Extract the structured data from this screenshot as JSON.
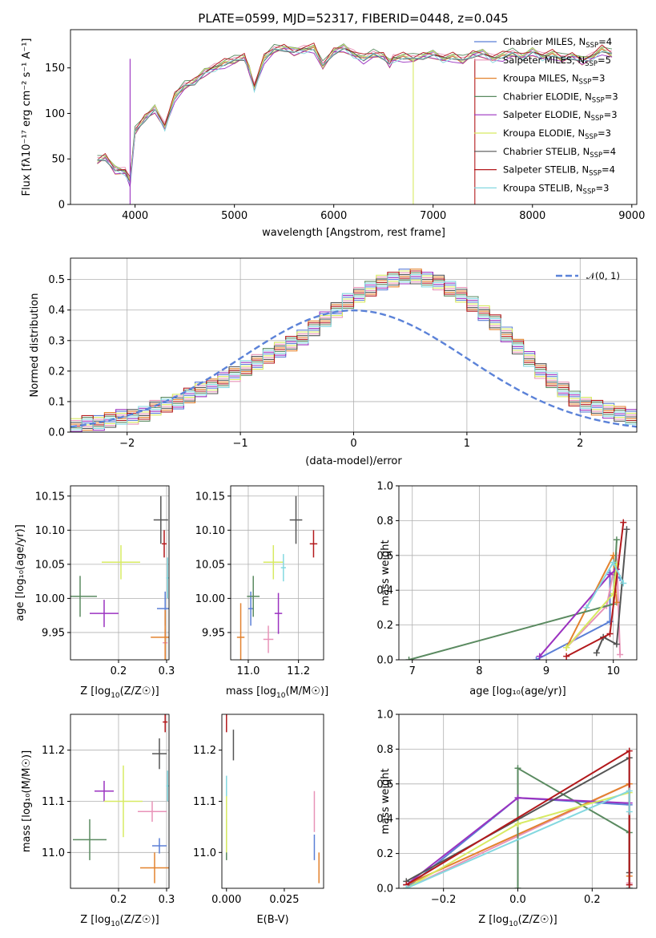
{
  "figure": {
    "title": "PLATE=0599, MJD=52317, FIBERID=0448, z=0.045"
  },
  "chart_data": [
    {
      "id": "spectrum",
      "type": "line",
      "xlabel": "wavelength [Angstrom, rest frame]",
      "ylabel": "Flux [fλ10⁻¹⁷ erg cm⁻² s⁻¹ A⁻¹]",
      "xlim": [
        3350,
        9050
      ],
      "ylim": [
        0,
        192
      ],
      "xticks": [
        4000,
        5000,
        6000,
        7000,
        8000,
        9000
      ],
      "yticks": [
        0,
        50,
        100,
        150
      ],
      "legend_position": "top-right",
      "x": [
        3620,
        3700,
        3800,
        3900,
        3950,
        4000,
        4100,
        4200,
        4300,
        4400,
        4500,
        4600,
        4700,
        4800,
        4900,
        5000,
        5100,
        5150,
        5200,
        5300,
        5400,
        5500,
        5600,
        5700,
        5800,
        5890,
        6000,
        6100,
        6200,
        6300,
        6400,
        6500,
        6563,
        6600,
        6700,
        6800,
        6900,
        7000,
        7100,
        7200,
        7300,
        7400,
        7500,
        7600,
        7700,
        7800,
        7900,
        8000,
        8100,
        8200,
        8300,
        8400,
        8500,
        8600,
        8700,
        8800
      ],
      "y": [
        48,
        52,
        38,
        36,
        25,
        80,
        95,
        105,
        85,
        118,
        130,
        135,
        145,
        150,
        155,
        158,
        162,
        148,
        128,
        160,
        170,
        172,
        168,
        170,
        172,
        152,
        168,
        172,
        165,
        160,
        165,
        163,
        155,
        160,
        162,
        160,
        163,
        165,
        160,
        162,
        158,
        165,
        166,
        160,
        163,
        166,
        162,
        168,
        162,
        165,
        160,
        163,
        158,
        162,
        170,
        165
      ],
      "dropouts": [
        {
          "series": "Salpeter ELODIE",
          "x": 3950
        },
        {
          "series": "Kroupa ELODIE",
          "x": 6800
        },
        {
          "series": "Salpeter STELIB",
          "x": 7420
        }
      ],
      "series": [
        {
          "name": "Chabrier MILES, N_SSP=4",
          "name_main": "Chabrier MILES, N",
          "name_sub": "SSP",
          "name_tail": "=4",
          "color": "#5b7fd6"
        },
        {
          "name": "Salpeter MILES, N_SSP=5",
          "name_main": "Salpeter MILES, N",
          "name_sub": "SSP",
          "name_tail": "=5",
          "color": "#e893b8"
        },
        {
          "name": "Kroupa MILES, N_SSP=3",
          "name_main": "Kroupa MILES, N",
          "name_sub": "SSP",
          "name_tail": "=3",
          "color": "#e3822e"
        },
        {
          "name": "Chabrier ELODIE, N_SSP=3",
          "name_main": "Chabrier ELODIE, N",
          "name_sub": "SSP",
          "name_tail": "=3",
          "color": "#5a8a60"
        },
        {
          "name": "Salpeter ELODIE, N_SSP=3",
          "name_main": "Salpeter ELODIE, N",
          "name_sub": "SSP",
          "name_tail": "=3",
          "color": "#9b32c0"
        },
        {
          "name": "Kroupa ELODIE, N_SSP=3",
          "name_main": "Kroupa ELODIE, N",
          "name_sub": "SSP",
          "name_tail": "=3",
          "color": "#d7ea62"
        },
        {
          "name": "Chabrier STELIB, N_SSP=4",
          "name_main": "Chabrier STELIB, N",
          "name_sub": "SSP",
          "name_tail": "=4",
          "color": "#555555"
        },
        {
          "name": "Salpeter STELIB, N_SSP=4",
          "name_main": "Salpeter STELIB, N",
          "name_sub": "SSP",
          "name_tail": "=4",
          "color": "#b3191c"
        },
        {
          "name": "Kroupa STELIB, N_SSP=3",
          "name_main": "Kroupa STELIB, N",
          "name_sub": "SSP",
          "name_tail": "=3",
          "color": "#84d8e0"
        }
      ]
    },
    {
      "id": "residuals",
      "type": "line",
      "xlabel": "(data-model)/error",
      "ylabel": "Normed distribution",
      "xlim": [
        -2.5,
        2.5
      ],
      "ylim": [
        0,
        0.57
      ],
      "xticks": [
        -2,
        -1,
        0,
        1,
        2
      ],
      "yticks": [
        0.0,
        0.1,
        0.2,
        0.3,
        0.4,
        0.5
      ],
      "grid": true,
      "legend": "𝒩(0, 1)",
      "legend_position": "top-right",
      "bin_width": 0.1,
      "bin_start": -2.5,
      "histogram": [
        0.02,
        0.03,
        0.03,
        0.04,
        0.05,
        0.05,
        0.06,
        0.08,
        0.09,
        0.1,
        0.12,
        0.14,
        0.15,
        0.17,
        0.19,
        0.21,
        0.23,
        0.25,
        0.27,
        0.29,
        0.31,
        0.34,
        0.37,
        0.4,
        0.43,
        0.45,
        0.47,
        0.49,
        0.5,
        0.51,
        0.51,
        0.5,
        0.49,
        0.47,
        0.45,
        0.42,
        0.39,
        0.36,
        0.32,
        0.28,
        0.24,
        0.2,
        0.17,
        0.14,
        0.11,
        0.09,
        0.08,
        0.07,
        0.06,
        0.05,
        0.04,
        0.04,
        0.03,
        0.03,
        0.02
      ],
      "reference_curve": "N(0,1)"
    },
    {
      "id": "age_vs_Z",
      "type": "scatter",
      "xlabel_main": "Z [log",
      "xlabel_sub": "10",
      "xlabel_tail": "(Z/Z☉)]",
      "ylabel": "age  [log₁₀(age/yr)]",
      "xlim": [
        0.1,
        0.305
      ],
      "ylim": [
        9.91,
        10.165
      ],
      "xticks": [
        0.2,
        0.3
      ],
      "yticks": [
        9.95,
        10.0,
        10.05,
        10.1,
        10.15
      ],
      "grid": true,
      "points": [
        {
          "x": 0.297,
          "y": 9.985,
          "xerr": 0.017,
          "yerr": 0.025,
          "color": "#5b7fd6"
        },
        {
          "x": 0.297,
          "y": 9.935,
          "xerr": 0.005,
          "yerr": 0.02,
          "color": "#e893b8"
        },
        {
          "x": 0.297,
          "y": 9.943,
          "xerr": 0.03,
          "yerr": 0.04,
          "color": "#e3822e"
        },
        {
          "x": 0.12,
          "y": 10.003,
          "xerr": 0.035,
          "yerr": 0.03,
          "color": "#5a8a60"
        },
        {
          "x": 0.17,
          "y": 9.978,
          "xerr": 0.03,
          "yerr": 0.02,
          "color": "#9b32c0"
        },
        {
          "x": 0.205,
          "y": 10.053,
          "xerr": 0.04,
          "yerr": 0.025,
          "color": "#d7ea62"
        },
        {
          "x": 0.288,
          "y": 10.115,
          "xerr": 0.015,
          "yerr": 0.035,
          "color": "#555555"
        },
        {
          "x": 0.295,
          "y": 10.08,
          "xerr": 0.005,
          "yerr": 0.02,
          "color": "#b3191c"
        },
        {
          "x": 0.302,
          "y": 10.03,
          "xerr": 0.003,
          "yerr": 0.03,
          "color": "#84d8e0"
        }
      ]
    },
    {
      "id": "age_vs_mass",
      "type": "scatter",
      "xlabel_main": "mass [log",
      "xlabel_sub": "10",
      "xlabel_tail": "(M/M☉)]",
      "xlim": [
        10.93,
        11.3
      ],
      "ylim": [
        9.91,
        10.165
      ],
      "xticks": [
        11.0,
        11.2
      ],
      "yticks": [
        9.95,
        10.0,
        10.05,
        10.1,
        10.15
      ],
      "grid": true,
      "points": [
        {
          "x": 11.01,
          "y": 9.985,
          "xerr": 0.01,
          "yerr": 0.025,
          "color": "#5b7fd6"
        },
        {
          "x": 11.08,
          "y": 9.94,
          "xerr": 0.02,
          "yerr": 0.02,
          "color": "#e893b8"
        },
        {
          "x": 10.97,
          "y": 9.943,
          "xerr": 0.015,
          "yerr": 0.05,
          "color": "#e3822e"
        },
        {
          "x": 11.02,
          "y": 10.003,
          "xerr": 0.025,
          "yerr": 0.03,
          "color": "#5a8a60"
        },
        {
          "x": 11.12,
          "y": 9.978,
          "xerr": 0.015,
          "yerr": 0.03,
          "color": "#9b32c0"
        },
        {
          "x": 11.1,
          "y": 10.053,
          "xerr": 0.04,
          "yerr": 0.025,
          "color": "#d7ea62"
        },
        {
          "x": 11.19,
          "y": 10.115,
          "xerr": 0.025,
          "yerr": 0.035,
          "color": "#555555"
        },
        {
          "x": 11.26,
          "y": 10.08,
          "xerr": 0.015,
          "yerr": 0.02,
          "color": "#b3191c"
        },
        {
          "x": 11.14,
          "y": 10.045,
          "xerr": 0.01,
          "yerr": 0.02,
          "color": "#84d8e0"
        }
      ]
    },
    {
      "id": "weight_vs_age",
      "type": "line",
      "xlabel": "age  [log₁₀(age/yr)]",
      "ylabel": "mass weight",
      "xlim": [
        6.8,
        10.35
      ],
      "ylim": [
        0,
        1.0
      ],
      "xticks": [
        7,
        8,
        9,
        10
      ],
      "yticks": [
        0.0,
        0.2,
        0.4,
        0.6,
        0.8,
        1.0
      ],
      "grid": true,
      "series": [
        {
          "color": "#5b7fd6",
          "x": [
            8.85,
            9.95,
            9.95,
            10.1
          ],
          "y": [
            0.0,
            0.22,
            0.5,
            0.47
          ]
        },
        {
          "color": "#e893b8",
          "x": [
            9.3,
            9.9,
            10.05,
            10.1
          ],
          "y": [
            0.07,
            0.31,
            0.6,
            0.03
          ]
        },
        {
          "color": "#e3822e",
          "x": [
            9.3,
            10.0,
            10.05
          ],
          "y": [
            0.07,
            0.6,
            0.33
          ]
        },
        {
          "color": "#5a8a60",
          "x": [
            6.95,
            10.0,
            10.05
          ],
          "y": [
            0.0,
            0.32,
            0.69
          ]
        },
        {
          "color": "#9b32c0",
          "x": [
            8.9,
            9.95,
            10.05
          ],
          "y": [
            0.02,
            0.49,
            0.52
          ]
        },
        {
          "color": "#d7ea62",
          "x": [
            9.3,
            10.0,
            10.05
          ],
          "y": [
            0.07,
            0.38,
            0.55
          ]
        },
        {
          "color": "#555555",
          "x": [
            9.75,
            9.85,
            10.05,
            10.2
          ],
          "y": [
            0.04,
            0.13,
            0.09,
            0.75
          ]
        },
        {
          "color": "#b3191c",
          "x": [
            9.3,
            9.95,
            10.15
          ],
          "y": [
            0.02,
            0.15,
            0.79
          ]
        },
        {
          "color": "#84d8e0",
          "x": [
            9.6,
            10.0,
            10.15
          ],
          "y": [
            0.3,
            0.56,
            0.44
          ]
        }
      ]
    },
    {
      "id": "mass_vs_Z",
      "type": "scatter",
      "xlabel_main": "Z [log",
      "xlabel_sub": "10",
      "xlabel_tail": "(Z/Z☉)]",
      "ylabel": "mass [log₁₀(M/M☉)]",
      "xlim": [
        0.1,
        0.305
      ],
      "ylim": [
        10.93,
        11.27
      ],
      "xticks": [
        0.2,
        0.3
      ],
      "yticks": [
        11.0,
        11.1,
        11.2
      ],
      "grid": true,
      "points": [
        {
          "x": 0.285,
          "y": 11.013,
          "xerr": 0.015,
          "yerr": 0.015,
          "color": "#5b7fd6"
        },
        {
          "x": 0.27,
          "y": 11.08,
          "xerr": 0.03,
          "yerr": 0.02,
          "color": "#e893b8"
        },
        {
          "x": 0.275,
          "y": 10.97,
          "xerr": 0.03,
          "yerr": 0.03,
          "color": "#e3822e"
        },
        {
          "x": 0.14,
          "y": 11.025,
          "xerr": 0.035,
          "yerr": 0.04,
          "color": "#5a8a60"
        },
        {
          "x": 0.17,
          "y": 11.12,
          "xerr": 0.02,
          "yerr": 0.02,
          "color": "#9b32c0"
        },
        {
          "x": 0.21,
          "y": 11.1,
          "xerr": 0.04,
          "yerr": 0.07,
          "color": "#d7ea62"
        },
        {
          "x": 0.285,
          "y": 11.193,
          "xerr": 0.015,
          "yerr": 0.03,
          "color": "#555555"
        },
        {
          "x": 0.297,
          "y": 11.255,
          "xerr": 0.005,
          "yerr": 0.02,
          "color": "#b3191c"
        },
        {
          "x": 0.302,
          "y": 11.13,
          "xerr": 0.003,
          "yerr": 0.03,
          "color": "#84d8e0"
        }
      ]
    },
    {
      "id": "mass_vs_EBV",
      "type": "scatter",
      "xlabel": "E(B-V)",
      "xlim": [
        -0.002,
        0.042
      ],
      "ylim": [
        10.93,
        11.27
      ],
      "xticks": [
        0.0,
        0.025
      ],
      "ytick_labels": [
        "11.0",
        "11.1",
        "11.2"
      ],
      "yticks": [
        11.0,
        11.1,
        11.2
      ],
      "points": [
        {
          "x": 0.038,
          "y": 11.01,
          "xerr": 0.0,
          "yerr": 0.025,
          "color": "#5b7fd6"
        },
        {
          "x": 0.038,
          "y": 11.08,
          "xerr": 0.0,
          "yerr": 0.04,
          "color": "#e893b8"
        },
        {
          "x": 0.04,
          "y": 10.97,
          "xerr": 0.0,
          "yerr": 0.03,
          "color": "#e3822e"
        },
        {
          "x": 0.0,
          "y": 11.025,
          "xerr": 0.0,
          "yerr": 0.04,
          "color": "#5a8a60"
        },
        {
          "x": 0.0,
          "y": 11.06,
          "xerr": 0.0,
          "yerr": 0.06,
          "color": "#d7ea62"
        },
        {
          "x": 0.003,
          "y": 11.21,
          "xerr": 0.0,
          "yerr": 0.03,
          "color": "#555555"
        },
        {
          "x": 0.0,
          "y": 11.255,
          "xerr": 0.0,
          "yerr": 0.02,
          "color": "#b3191c"
        },
        {
          "x": 0.0,
          "y": 11.13,
          "xerr": 0.0,
          "yerr": 0.02,
          "color": "#84d8e0"
        }
      ]
    },
    {
      "id": "weight_vs_Z",
      "type": "line",
      "xlabel_main": "Z [log",
      "xlabel_sub": "10",
      "xlabel_tail": "(Z/Z☉)]",
      "ylabel": "mass weight",
      "xlim": [
        -0.32,
        0.32
      ],
      "ylim": [
        0,
        1.0
      ],
      "xticks": [
        -0.2,
        0.0,
        0.2
      ],
      "yticks": [
        0.0,
        0.2,
        0.4,
        0.6,
        0.8,
        1.0
      ],
      "grid": true,
      "series": [
        {
          "color": "#5b7fd6",
          "x": [
            -0.3,
            0.0,
            0.3,
            0.3
          ],
          "y": [
            0.0,
            0.52,
            0.48,
            0.0
          ]
        },
        {
          "color": "#e893b8",
          "x": [
            -0.3,
            0.3,
            0.3
          ],
          "y": [
            0.0,
            0.6,
            0.03
          ]
        },
        {
          "color": "#e3822e",
          "x": [
            -0.3,
            0.3,
            0.3
          ],
          "y": [
            0.02,
            0.6,
            0.07
          ]
        },
        {
          "color": "#5a8a60",
          "x": [
            0.0,
            0.0,
            0.3,
            0.3
          ],
          "y": [
            0.0,
            0.69,
            0.32,
            0.0
          ]
        },
        {
          "color": "#9b32c0",
          "x": [
            -0.3,
            0.0,
            0.3
          ],
          "y": [
            0.02,
            0.52,
            0.49
          ]
        },
        {
          "color": "#d7ea62",
          "x": [
            -0.3,
            0.0,
            0.3
          ],
          "y": [
            0.0,
            0.37,
            0.55
          ]
        },
        {
          "color": "#555555",
          "x": [
            -0.3,
            0.3,
            0.3
          ],
          "y": [
            0.04,
            0.75,
            0.09
          ]
        },
        {
          "color": "#b3191c",
          "x": [
            -0.3,
            0.3,
            0.3
          ],
          "y": [
            0.02,
            0.79,
            0.02
          ]
        },
        {
          "color": "#84d8e0",
          "x": [
            -0.3,
            0.3,
            0.3
          ],
          "y": [
            0.0,
            0.56,
            0.44
          ]
        }
      ]
    }
  ]
}
